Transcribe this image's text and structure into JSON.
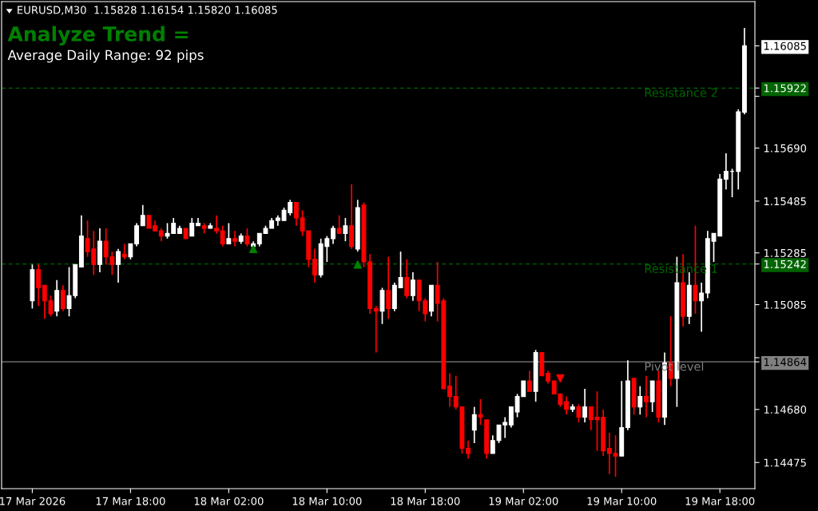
{
  "chart_data": {
    "type": "candlestick",
    "title": "EURUSD,M30  1.15828 1.16154 1.15820 1.16085",
    "subtitle": "Analyze Trend =",
    "annotations": [
      "Average Daily Range: 92 pips"
    ],
    "categories": [
      "17 Mar 2026",
      null,
      null,
      null,
      null,
      null,
      null,
      null,
      null,
      null,
      null,
      null,
      null,
      null,
      null,
      null,
      "17 Mar 18:00",
      null,
      null,
      null,
      null,
      null,
      null,
      null,
      null,
      null,
      null,
      null,
      null,
      null,
      null,
      null,
      "18 Mar 02:00",
      null,
      null,
      null,
      null,
      null,
      null,
      null,
      null,
      null,
      null,
      null,
      null,
      null,
      null,
      null,
      "18 Mar 10:00",
      null,
      null,
      null,
      null,
      null,
      null,
      null,
      null,
      null,
      null,
      null,
      null,
      null,
      null,
      null,
      "18 Mar 18:00",
      null,
      null,
      null,
      null,
      null,
      null,
      null,
      null,
      null,
      null,
      null,
      null,
      null,
      null,
      null,
      "19 Mar 02:00",
      null,
      null,
      null,
      null,
      null,
      null,
      null,
      null,
      null,
      null,
      null,
      null,
      null,
      null,
      null,
      "19 Mar 10:00",
      null,
      null,
      null,
      null,
      null,
      null,
      null,
      null,
      null,
      null,
      null,
      null,
      null,
      null,
      null,
      "19 Mar 18:00",
      null,
      null,
      null,
      null
    ],
    "ohlc": [
      [
        1.151,
        1.1524,
        1.1507,
        1.1522
      ],
      [
        1.1522,
        1.1524,
        1.1508,
        1.1515
      ],
      [
        1.1516,
        1.1516,
        1.1503,
        1.151
      ],
      [
        1.151,
        1.1512,
        1.1504,
        1.1505
      ],
      [
        1.1506,
        1.1518,
        1.1504,
        1.1514
      ],
      [
        1.1514,
        1.1516,
        1.1506,
        1.1507
      ],
      [
        1.1507,
        1.1523,
        1.1504,
        1.1512
      ],
      [
        1.1512,
        1.1524,
        1.1511,
        1.1524
      ],
      [
        1.1523,
        1.1543,
        1.1523,
        1.1535
      ],
      [
        1.1534,
        1.1541,
        1.1527,
        1.1529
      ],
      [
        1.153,
        1.1537,
        1.152,
        1.1524
      ],
      [
        1.1524,
        1.1538,
        1.1521,
        1.1533
      ],
      [
        1.1533,
        1.1538,
        1.1524,
        1.1527
      ],
      [
        1.1527,
        1.1529,
        1.152,
        1.1524
      ],
      [
        1.1524,
        1.153,
        1.1517,
        1.1529
      ],
      [
        1.1528,
        1.1532,
        1.1526,
        1.1527
      ],
      [
        1.1527,
        1.1532,
        1.1526,
        1.1532
      ],
      [
        1.1532,
        1.154,
        1.1531,
        1.1539
      ],
      [
        1.1539,
        1.1547,
        1.1539,
        1.1543
      ],
      [
        1.1543,
        1.1543,
        1.1538,
        1.1538
      ],
      [
        1.1539,
        1.1541,
        1.1537,
        1.1537
      ],
      [
        1.1537,
        1.1538,
        1.1533,
        1.1535
      ],
      [
        1.1535,
        1.154,
        1.1534,
        1.1536
      ],
      [
        1.1536,
        1.1542,
        1.1536,
        1.154
      ],
      [
        1.1536,
        1.1539,
        1.1536,
        1.1538
      ],
      [
        1.1538,
        1.1538,
        1.1534,
        1.1534
      ],
      [
        1.1535,
        1.1542,
        1.1535,
        1.154
      ],
      [
        1.1539,
        1.1542,
        1.1539,
        1.154
      ],
      [
        1.1539,
        1.154,
        1.1536,
        1.1538
      ],
      [
        1.1538,
        1.154,
        1.1538,
        1.1539
      ],
      [
        1.1538,
        1.1543,
        1.1536,
        1.1537
      ],
      [
        1.1537,
        1.1539,
        1.1531,
        1.1532
      ],
      [
        1.1532,
        1.154,
        1.1532,
        1.1534
      ],
      [
        1.1534,
        1.1537,
        1.1531,
        1.1533
      ],
      [
        1.1533,
        1.1536,
        1.1532,
        1.1535
      ],
      [
        1.1535,
        1.1538,
        1.1531,
        1.1532
      ],
      [
        1.1531,
        1.1533,
        1.1531,
        1.1532
      ],
      [
        1.1532,
        1.1536,
        1.1531,
        1.1536
      ],
      [
        1.1536,
        1.1539,
        1.1536,
        1.1538
      ],
      [
        1.1538,
        1.1542,
        1.1538,
        1.1541
      ],
      [
        1.1541,
        1.1543,
        1.1539,
        1.1542
      ],
      [
        1.1541,
        1.1546,
        1.1541,
        1.1545
      ],
      [
        1.1544,
        1.1549,
        1.1543,
        1.1548
      ],
      [
        1.1548,
        1.1548,
        1.1539,
        1.1542
      ],
      [
        1.1542,
        1.1545,
        1.1535,
        1.1537
      ],
      [
        1.1537,
        1.1537,
        1.1523,
        1.1526
      ],
      [
        1.1526,
        1.153,
        1.1517,
        1.152
      ],
      [
        1.152,
        1.1534,
        1.1519,
        1.1532
      ],
      [
        1.1531,
        1.1535,
        1.1525,
        1.1534
      ],
      [
        1.1534,
        1.1539,
        1.1532,
        1.1538
      ],
      [
        1.1538,
        1.1543,
        1.1536,
        1.1536
      ],
      [
        1.1536,
        1.1542,
        1.1533,
        1.1539
      ],
      [
        1.1539,
        1.1555,
        1.153,
        1.1531
      ],
      [
        1.153,
        1.1549,
        1.1529,
        1.1546
      ],
      [
        1.1547,
        1.1548,
        1.1523,
        1.1525
      ],
      [
        1.1525,
        1.1528,
        1.1505,
        1.1507
      ],
      [
        1.1507,
        1.1508,
        1.149,
        1.1506
      ],
      [
        1.1506,
        1.1515,
        1.1501,
        1.1514
      ],
      [
        1.1514,
        1.1527,
        1.1503,
        1.1507
      ],
      [
        1.1507,
        1.1517,
        1.1506,
        1.1516
      ],
      [
        1.1515,
        1.1529,
        1.1515,
        1.1519
      ],
      [
        1.1519,
        1.1526,
        1.1511,
        1.1512
      ],
      [
        1.1512,
        1.1521,
        1.151,
        1.1518
      ],
      [
        1.1518,
        1.1518,
        1.1506,
        1.151
      ],
      [
        1.151,
        1.1511,
        1.1502,
        1.1505
      ],
      [
        1.1506,
        1.1516,
        1.1504,
        1.1516
      ],
      [
        1.1516,
        1.1525,
        1.1502,
        1.1509
      ],
      [
        1.151,
        1.1511,
        1.1476,
        1.1476
      ],
      [
        1.1477,
        1.1482,
        1.1469,
        1.1473
      ],
      [
        1.1473,
        1.1481,
        1.1468,
        1.1469
      ],
      [
        1.1469,
        1.1469,
        1.1451,
        1.1453
      ],
      [
        1.1453,
        1.1456,
        1.1449,
        1.1451
      ],
      [
        1.146,
        1.1469,
        1.1455,
        1.1466
      ],
      [
        1.1466,
        1.1472,
        1.1462,
        1.1465
      ],
      [
        1.1464,
        1.1464,
        1.1449,
        1.1451
      ],
      [
        1.1451,
        1.1458,
        1.1451,
        1.1456
      ],
      [
        1.1456,
        1.1462,
        1.1455,
        1.1462
      ],
      [
        1.1462,
        1.1465,
        1.1457,
        1.1463
      ],
      [
        1.1462,
        1.1469,
        1.1461,
        1.1469
      ],
      [
        1.1467,
        1.1474,
        1.1465,
        1.1473
      ],
      [
        1.1473,
        1.1479,
        1.1473,
        1.1479
      ],
      [
        1.1479,
        1.1483,
        1.1475,
        1.1475
      ],
      [
        1.1475,
        1.1491,
        1.1471,
        1.149
      ],
      [
        1.149,
        1.149,
        1.1481,
        1.1481
      ],
      [
        1.1482,
        1.1483,
        1.1478,
        1.1479
      ],
      [
        1.1479,
        1.1479,
        1.1474,
        1.1474
      ],
      [
        1.1474,
        1.1474,
        1.1469,
        1.147
      ],
      [
        1.1471,
        1.1473,
        1.1466,
        1.1468
      ],
      [
        1.1468,
        1.147,
        1.1467,
        1.1469
      ],
      [
        1.1469,
        1.147,
        1.1463,
        1.1465
      ],
      [
        1.1465,
        1.1476,
        1.1463,
        1.1469
      ],
      [
        1.1469,
        1.1469,
        1.146,
        1.1464
      ],
      [
        1.1465,
        1.1475,
        1.1452,
        1.1464
      ],
      [
        1.1465,
        1.1468,
        1.145,
        1.1452
      ],
      [
        1.1453,
        1.1459,
        1.1443,
        1.1451
      ],
      [
        1.1451,
        1.1458,
        1.1442,
        1.145
      ],
      [
        1.145,
        1.1479,
        1.145,
        1.1461
      ],
      [
        1.1461,
        1.1487,
        1.146,
        1.1479
      ],
      [
        1.148,
        1.148,
        1.1466,
        1.1469
      ],
      [
        1.1469,
        1.1477,
        1.1466,
        1.1473
      ],
      [
        1.1473,
        1.1481,
        1.1465,
        1.1471
      ],
      [
        1.1471,
        1.1479,
        1.1467,
        1.1479
      ],
      [
        1.1479,
        1.1483,
        1.1463,
        1.1465
      ],
      [
        1.1465,
        1.149,
        1.1462,
        1.1486
      ],
      [
        1.1486,
        1.1504,
        1.1477,
        1.148
      ],
      [
        1.148,
        1.1527,
        1.1469,
        1.1517
      ],
      [
        1.1517,
        1.1528,
        1.15,
        1.1504
      ],
      [
        1.1504,
        1.1521,
        1.1501,
        1.1516
      ],
      [
        1.1516,
        1.1539,
        1.1505,
        1.151
      ],
      [
        1.151,
        1.1517,
        1.1498,
        1.1513
      ],
      [
        1.1513,
        1.1537,
        1.1511,
        1.1534
      ],
      [
        1.1533,
        1.1536,
        1.1525,
        1.1536
      ],
      [
        1.1535,
        1.1559,
        1.1535,
        1.1557
      ],
      [
        1.1557,
        1.1567,
        1.1553,
        1.156
      ],
      [
        1.156,
        1.1561,
        1.155,
        1.156
      ],
      [
        1.156,
        1.1584,
        1.1553,
        1.1583
      ],
      [
        1.15828,
        1.16154,
        1.1582,
        1.16085
      ]
    ],
    "colors": [
      "#ffffff",
      "#ff0000",
      "#ff0000",
      "#ff0000",
      "#ffffff",
      "#ff0000",
      "#ffffff",
      "#ffffff",
      "#ffffff",
      "#ff0000",
      "#ff0000",
      "#ffffff",
      "#ff0000",
      "#ff0000",
      "#ffffff",
      "#ff0000",
      "#ffffff",
      "#ffffff",
      "#ffffff",
      "#ff0000",
      "#ff0000",
      "#ff0000",
      "#ffffff",
      "#ffffff",
      "#ffffff",
      "#ff0000",
      "#ffffff",
      "#ffffff",
      "#ff0000",
      "#ffffff",
      "#ff0000",
      "#ff0000",
      "#ffffff",
      "#ff0000",
      "#ffffff",
      "#ff0000",
      "#ffffff",
      "#ffffff",
      "#ffffff",
      "#ffffff",
      "#ffffff",
      "#ffffff",
      "#ffffff",
      "#ff0000",
      "#ff0000",
      "#ff0000",
      "#ff0000",
      "#ffffff",
      "#ffffff",
      "#ffffff",
      "#ff0000",
      "#ffffff",
      "#ff0000",
      "#ffffff",
      "#ff0000",
      "#ff0000",
      "#ff0000",
      "#ffffff",
      "#ff0000",
      "#ffffff",
      "#ffffff",
      "#ff0000",
      "#ffffff",
      "#ff0000",
      "#ff0000",
      "#ffffff",
      "#ff0000",
      "#ff0000",
      "#ff0000",
      "#ff0000",
      "#ff0000",
      "#ff0000",
      "#ffffff",
      "#ff0000",
      "#ff0000",
      "#ffffff",
      "#ffffff",
      "#ffffff",
      "#ffffff",
      "#ffffff",
      "#ffffff",
      "#ff0000",
      "#ffffff",
      "#ff0000",
      "#ff0000",
      "#ff0000",
      "#ff0000",
      "#ff0000",
      "#ffffff",
      "#ff0000",
      "#ffffff",
      "#ff0000",
      "#ff0000",
      "#ff0000",
      "#ff0000",
      "#ff0000",
      "#ffffff",
      "#ffffff",
      "#ff0000",
      "#ffffff",
      "#ff0000",
      "#ffffff",
      "#ff0000",
      "#ffffff",
      "#ff0000",
      "#ffffff",
      "#ff0000",
      "#ffffff",
      "#ff0000",
      "#ffffff",
      "#ffffff",
      "#ffffff",
      "#ffffff",
      "#ffffff",
      "#ffffff",
      "#ffffff",
      "#ffffff"
    ],
    "series": [
      {
        "type": "scatter",
        "color": "#008000",
        "marker": "triangle",
        "values": [
          null,
          null,
          null,
          null,
          null,
          null,
          null,
          null,
          null,
          null,
          null,
          null,
          null,
          null,
          null,
          null,
          null,
          null,
          null,
          null,
          null,
          null,
          null,
          null,
          null,
          null,
          null,
          null,
          null,
          null,
          null,
          null,
          null,
          null,
          null,
          null,
          1.153,
          null,
          null,
          null,
          null,
          null,
          null,
          null,
          null,
          null,
          null,
          null,
          null,
          null,
          null,
          null,
          null,
          1.1524,
          null,
          null,
          null,
          null,
          null,
          null,
          null,
          null,
          null,
          null,
          null,
          null,
          null,
          null,
          null,
          null,
          null,
          null,
          null,
          null,
          null,
          null,
          null,
          null,
          null,
          null,
          null,
          null,
          null,
          null,
          null,
          null,
          null,
          null,
          null,
          null,
          null,
          null,
          null,
          null,
          null,
          null,
          null,
          null,
          null,
          null,
          null,
          null,
          null,
          null,
          null,
          null,
          null,
          null,
          null,
          null,
          null,
          null,
          null,
          null,
          null,
          null,
          null
        ]
      },
      {
        "type": "scatter",
        "color": "#ff0000",
        "marker": "triangle_down",
        "values": [
          null,
          null,
          null,
          null,
          null,
          null,
          null,
          null,
          null,
          null,
          null,
          null,
          null,
          null,
          null,
          null,
          null,
          null,
          null,
          null,
          null,
          null,
          null,
          null,
          null,
          null,
          null,
          null,
          null,
          null,
          null,
          null,
          null,
          null,
          null,
          null,
          null,
          null,
          null,
          null,
          null,
          null,
          null,
          null,
          null,
          null,
          null,
          null,
          null,
          null,
          null,
          null,
          null,
          null,
          null,
          null,
          null,
          null,
          null,
          null,
          null,
          null,
          null,
          null,
          null,
          null,
          null,
          null,
          null,
          null,
          null,
          null,
          null,
          null,
          null,
          null,
          null,
          null,
          null,
          null,
          null,
          null,
          null,
          null,
          null,
          null,
          1.148,
          null,
          null,
          null,
          null,
          null,
          null,
          null,
          null,
          null,
          null,
          null,
          null,
          null,
          null,
          null,
          null,
          null,
          null,
          null,
          null,
          null,
          null,
          null,
          null,
          null,
          null,
          null,
          null,
          null,
          null
        ]
      }
    ],
    "ylim": [
      1.14374,
      1.16256
    ],
    "yticks": [
      {
        "value": 1.1589,
        "label": null
      },
      {
        "value": 1.1569,
        "label": "1.15690"
      },
      {
        "value": 1.15485,
        "label": "1.15485"
      },
      {
        "value": 1.15285,
        "label": "1.15285"
      },
      {
        "value": 1.15085,
        "label": "1.15085"
      },
      {
        "value": 1.1488,
        "label": null
      },
      {
        "value": 1.1468,
        "label": "1.14680"
      },
      {
        "value": 1.14475,
        "label": "1.14475"
      },
      {
        "value": 1.16085,
        "label": "1.16085"
      },
      {
        "value": 1.15922,
        "label": "1.15922"
      },
      {
        "value": 1.15242,
        "label": "1.15242"
      },
      {
        "value": 1.14864,
        "label": "1.14864"
      }
    ],
    "ref_lines": [
      {
        "axis": "y",
        "value": 1.15922,
        "label": "Resistance 2",
        "color": "#006400",
        "line_style": "dashed"
      },
      {
        "axis": "y",
        "value": 1.15242,
        "label": "Resistance 1",
        "color": "#006400",
        "line_style": "dashed"
      },
      {
        "axis": "y",
        "value": 1.14864,
        "label": "Pivot level",
        "color": "#808080",
        "line_style": "solid"
      }
    ],
    "grid": false,
    "legend": false
  }
}
